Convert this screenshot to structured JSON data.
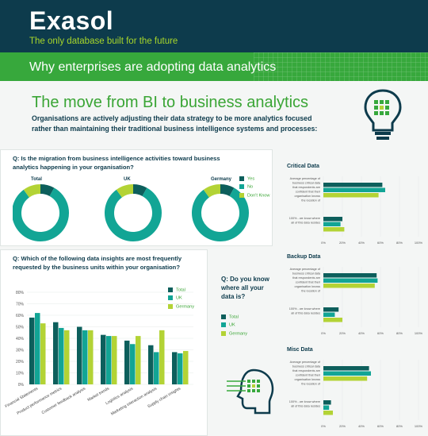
{
  "header": {
    "logo": "Exasol",
    "tagline": "The only database built for the future",
    "band_title": "Why enterprises are adopting data analytics"
  },
  "main": {
    "title": "The move from BI to business analytics",
    "intro": "Organisations are actively adjusting their data strategy to be more analytics focused rather than maintaining their traditional business intelligence systems and processes:"
  },
  "colors": {
    "total": "#0d5f5c",
    "uk": "#12a595",
    "germany": "#b3d335",
    "green": "#37a83c",
    "navy": "#0d3b4c"
  },
  "chart_data": [
    {
      "type": "pie",
      "question": "Q: Is the migration from business intelligence activities toward business analytics happening in your organisation?",
      "donuts": [
        {
          "label": "Total",
          "values": [
            8,
            82,
            10
          ]
        },
        {
          "label": "UK",
          "values": [
            8,
            82,
            10
          ]
        },
        {
          "label": "Germany",
          "values": [
            8,
            82,
            10
          ]
        }
      ],
      "legend": [
        "Yes",
        "No",
        "Don't Know"
      ]
    },
    {
      "type": "bar",
      "question": "Q: Which of the following data insights are most frequently requested by the business units within your organisation?",
      "categories": [
        "Financial Statements",
        "Product performance metrics",
        "Customer feedback analysis",
        "Market trends",
        "Logistics analysis",
        "Marketing interaction analysis",
        "Supply chain insights"
      ],
      "series": [
        {
          "name": "Total",
          "values": [
            58,
            54,
            50,
            43,
            38,
            34,
            28
          ]
        },
        {
          "name": "UK",
          "values": [
            62,
            49,
            47,
            42,
            35,
            28,
            27
          ]
        },
        {
          "name": "Germany",
          "values": [
            53,
            47,
            47,
            42,
            42,
            47,
            29
          ]
        }
      ],
      "ylim": [
        0,
        80
      ],
      "yticks": [
        "0%",
        "10%",
        "20%",
        "30%",
        "40%",
        "50%",
        "60%",
        "70%",
        "80%"
      ]
    },
    {
      "type": "bar",
      "title": "Critical Data",
      "categories": [
        "Average percentage of business critical data that respondents are confident that their organisation knows the location of",
        "100% - we know where all of this data resides"
      ],
      "series": [
        {
          "name": "Total",
          "values": [
            62,
            20
          ]
        },
        {
          "name": "UK",
          "values": [
            65,
            18
          ]
        },
        {
          "name": "Germany",
          "values": [
            58,
            22
          ]
        }
      ],
      "xticks": [
        "0%",
        "20%",
        "40%",
        "60%",
        "80%",
        "100%"
      ]
    },
    {
      "type": "bar",
      "title": "Backup Data",
      "categories": [
        "Average percentage of business critical data that respondents are confident that their organisation knows the location of",
        "100% - we know where all of this data resides"
      ],
      "series": [
        {
          "name": "Total",
          "values": [
            56,
            16
          ]
        },
        {
          "name": "UK",
          "values": [
            57,
            12
          ]
        },
        {
          "name": "Germany",
          "values": [
            54,
            20
          ]
        }
      ],
      "xticks": [
        "0%",
        "20%",
        "40%",
        "60%",
        "80%",
        "100%"
      ]
    },
    {
      "type": "bar",
      "title": "Misc Data",
      "categories": [
        "Average percentage of business critical data that respondents are confident that their organisation knows the location of",
        "100% - we know where all of this data resides"
      ],
      "series": [
        {
          "name": "Total",
          "values": [
            48,
            8
          ]
        },
        {
          "name": "UK",
          "values": [
            50,
            6
          ]
        },
        {
          "name": "Germany",
          "values": [
            46,
            10
          ]
        }
      ],
      "xticks": [
        "0%",
        "20%",
        "40%",
        "60%",
        "80%",
        "100%"
      ]
    }
  ],
  "location_question": "Q: Do you know where all your data is?",
  "location_legend": [
    "Total",
    "UK",
    "Germany"
  ]
}
